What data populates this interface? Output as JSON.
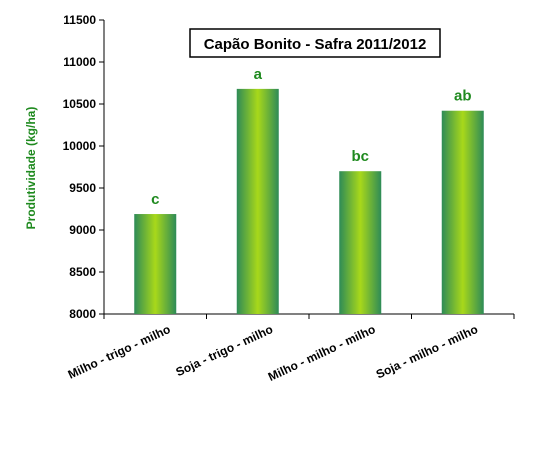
{
  "chart_data": {
    "type": "bar",
    "title": "Capão Bonito - Safra 2011/2012",
    "ylabel": "Produtividade (kg/ha)",
    "xlabel": "",
    "categories": [
      "Milho - trigo - milho",
      "Soja - trigo - milho",
      "Milho - milho - milho",
      "Soja - milho - milho"
    ],
    "values": [
      9190,
      10680,
      9700,
      10420
    ],
    "data_labels": [
      "c",
      "a",
      "bc",
      "ab"
    ],
    "ylim": [
      8000,
      11500
    ],
    "yticks": [
      "8000",
      "8500",
      "9000",
      "9500",
      "10000",
      "10500",
      "11000",
      "11500"
    ],
    "grid": false,
    "legend": "none",
    "colors": {
      "bar_edge": "#2e8b57",
      "bar_center": "#a8d81a",
      "data_label": "#1f8a1f",
      "ylabel": "#1f8a1f",
      "axis": "#000000"
    }
  }
}
